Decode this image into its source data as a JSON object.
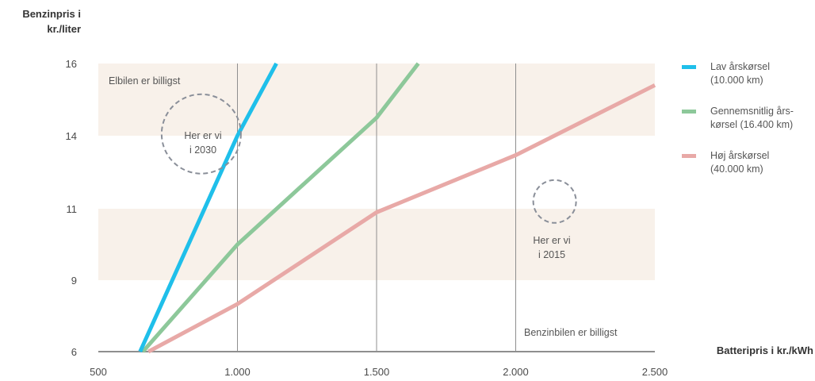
{
  "chart_data": {
    "type": "line",
    "ylabel_line1": "Benzinpris i",
    "ylabel_line2": "kr./liter",
    "xlabel": "Batteripris i kr./kWh",
    "x_ticks": [
      500,
      1000,
      1500,
      2000,
      2500
    ],
    "x_tick_labels": [
      "500",
      "1.000",
      "1.500",
      "2.000",
      "2.500"
    ],
    "xlim": [
      500,
      2500
    ],
    "y_ticks": [
      6,
      9,
      11,
      14,
      16
    ],
    "y_tick_labels": [
      "6",
      "9",
      "11",
      "14",
      "16"
    ],
    "grid_x": [
      1000,
      1500,
      2000
    ],
    "bands": [
      [
        14,
        16
      ],
      [
        9,
        11
      ]
    ],
    "series": [
      {
        "name_line1": "Lav årskørsel",
        "name_line2": "(10.000 km)",
        "color": "#1fbfea",
        "points": [
          [
            650,
            6
          ],
          [
            1000,
            14
          ],
          [
            1140,
            16
          ]
        ]
      },
      {
        "name_line1": "Gennemsnitlig års-",
        "name_line2": "kørsel (16.400 km)",
        "color": "#8dc89a",
        "points": [
          [
            660,
            6
          ],
          [
            1000,
            10
          ],
          [
            1500,
            14.5
          ],
          [
            1650,
            16
          ]
        ]
      },
      {
        "name_line1": "Høj årskørsel",
        "name_line2": "(40.000 km)",
        "color": "#e8a9a7",
        "points": [
          [
            680,
            6
          ],
          [
            1000,
            8
          ],
          [
            1500,
            10.9
          ],
          [
            2000,
            13.2
          ],
          [
            2500,
            15.4
          ]
        ]
      }
    ],
    "region_labels": {
      "top_left": "Elbilen er billigst",
      "bottom_right": "Benzinbilen er billigst"
    },
    "annotations": [
      {
        "line1": "Her er vi",
        "line2": "i 2030",
        "x": 870,
        "y": 14.05
      },
      {
        "line1": "Her er vi",
        "line2": "i 2015",
        "x": 2140,
        "y": 11.3
      }
    ]
  }
}
